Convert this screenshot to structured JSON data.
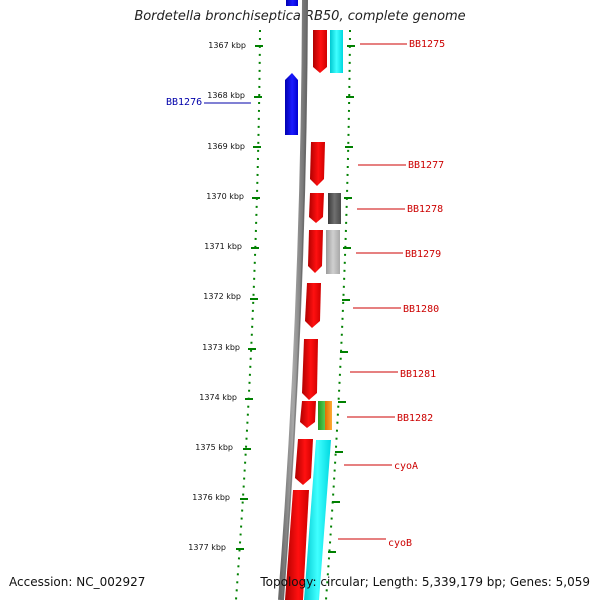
{
  "title": "Bordetella bronchiseptica RB50, complete genome",
  "accession": "Accession: NC_002927",
  "stats": "Topology: circular; Length: 5,339,179 bp; Genes: 5,059",
  "colors": {
    "backbone": "#808080",
    "tick": "#008000",
    "forward_gene": "#e00000",
    "reverse_gene": "#0000ee",
    "forward_label": "#cc0000",
    "reverse_label": "#0000aa",
    "cyan_feature": "#00e5ee",
    "dark_gray_feature": "#555555",
    "light_gray_feature": "#aaaaaa",
    "green_feature": "#33aa33",
    "orange_feature": "#ff8800"
  },
  "ruler": {
    "unit": "kbp",
    "labels": [
      "1367 kbp",
      "1368 kbp",
      "1369 kbp",
      "1370 kbp",
      "1371 kbp",
      "1372 kbp",
      "1373 kbp",
      "1374 kbp",
      "1375 kbp",
      "1376 kbp",
      "1377 kbp"
    ]
  },
  "gene_labels": [
    {
      "name": "BB1275",
      "strand": "forward"
    },
    {
      "name": "BB1276",
      "strand": "reverse"
    },
    {
      "name": "BB1277",
      "strand": "forward"
    },
    {
      "name": "BB1278",
      "strand": "forward"
    },
    {
      "name": "BB1279",
      "strand": "forward"
    },
    {
      "name": "BB1280",
      "strand": "forward"
    },
    {
      "name": "BB1281",
      "strand": "forward"
    },
    {
      "name": "BB1282",
      "strand": "forward"
    },
    {
      "name": "cyoA",
      "strand": "forward"
    },
    {
      "name": "cyoB",
      "strand": "forward"
    }
  ]
}
